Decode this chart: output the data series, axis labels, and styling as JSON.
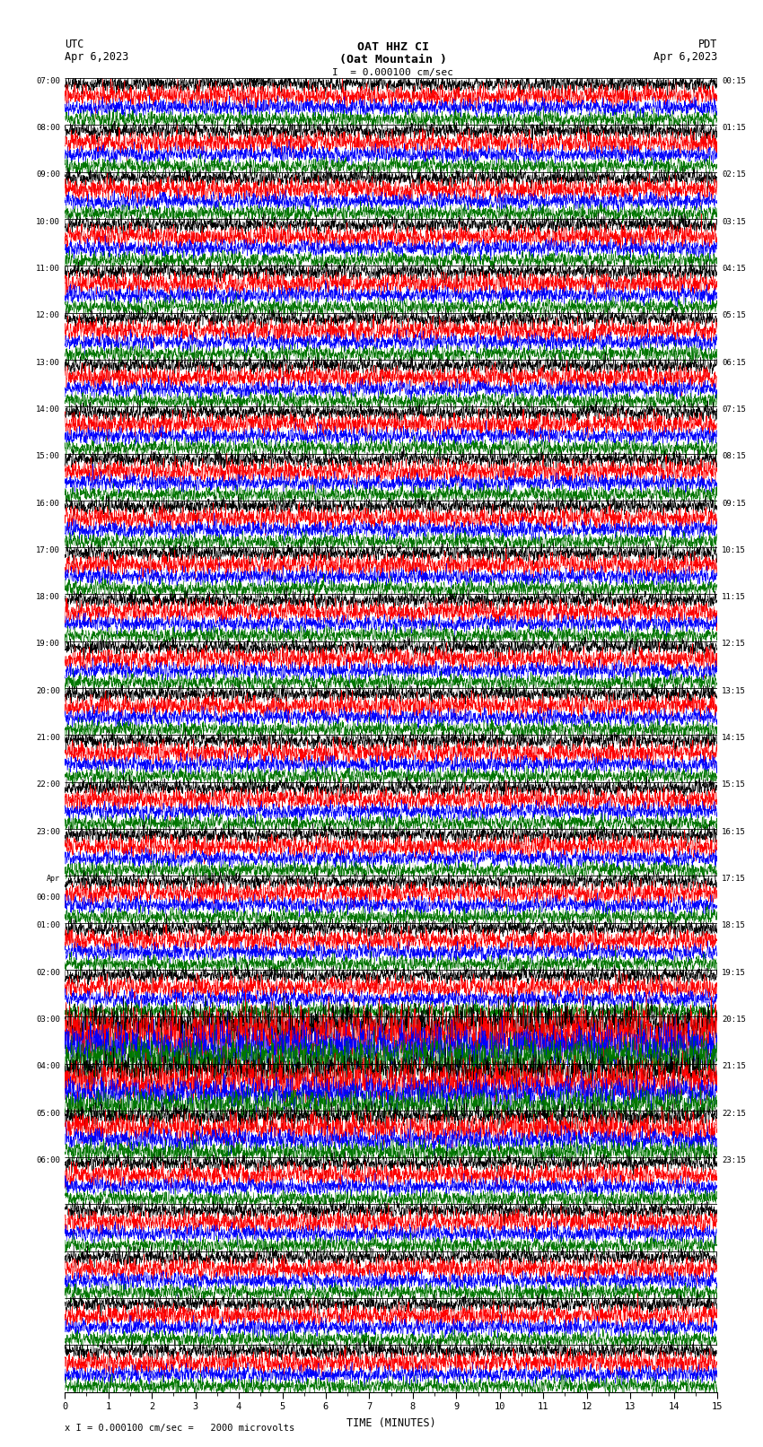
{
  "title_line1": "OAT HHZ CI",
  "title_line2": "(Oat Mountain )",
  "scale_label": "I  = 0.000100 cm/sec",
  "utc_label": "UTC",
  "pdt_label": "PDT",
  "date_left": "Apr 6,2023",
  "date_right": "Apr 6,2023",
  "xlabel": "TIME (MINUTES)",
  "footer": "x I = 0.000100 cm/sec =   2000 microvolts",
  "bg_color": "#ffffff",
  "trace_colors": [
    "#000000",
    "#ff0000",
    "#0000ff",
    "#007700"
  ],
  "xlim": [
    0,
    15
  ],
  "xticks": [
    0,
    1,
    2,
    3,
    4,
    5,
    6,
    7,
    8,
    9,
    10,
    11,
    12,
    13,
    14,
    15
  ],
  "num_rows": 28,
  "traces_per_row": 4,
  "left_times": [
    "07:00",
    "08:00",
    "09:00",
    "10:00",
    "11:00",
    "12:00",
    "13:00",
    "14:00",
    "15:00",
    "16:00",
    "17:00",
    "18:00",
    "19:00",
    "20:00",
    "21:00",
    "22:00",
    "23:00",
    "Apr\n00:00",
    "01:00",
    "02:00",
    "03:00",
    "04:00",
    "05:00",
    "06:00",
    "",
    "",
    "",
    "",
    "",
    "",
    "",
    "",
    "",
    "",
    "",
    "",
    "",
    "",
    "",
    "",
    "",
    "",
    "",
    "",
    "",
    "",
    "",
    "",
    "",
    "",
    "",
    "",
    ""
  ],
  "right_times": [
    "00:15",
    "01:15",
    "02:15",
    "03:15",
    "04:15",
    "05:15",
    "06:15",
    "07:15",
    "08:15",
    "09:15",
    "10:15",
    "11:15",
    "12:15",
    "13:15",
    "14:15",
    "15:15",
    "16:15",
    "17:15",
    "18:15",
    "19:15",
    "20:15",
    "21:15",
    "22:15",
    "23:15",
    "",
    "",
    "",
    "",
    "",
    "",
    "",
    "",
    "",
    "",
    "",
    "",
    "",
    "",
    "",
    "",
    "",
    "",
    "",
    "",
    "",
    "",
    "",
    "",
    "",
    "",
    "",
    "",
    ""
  ],
  "figsize": [
    8.5,
    16.13
  ],
  "dpi": 100
}
